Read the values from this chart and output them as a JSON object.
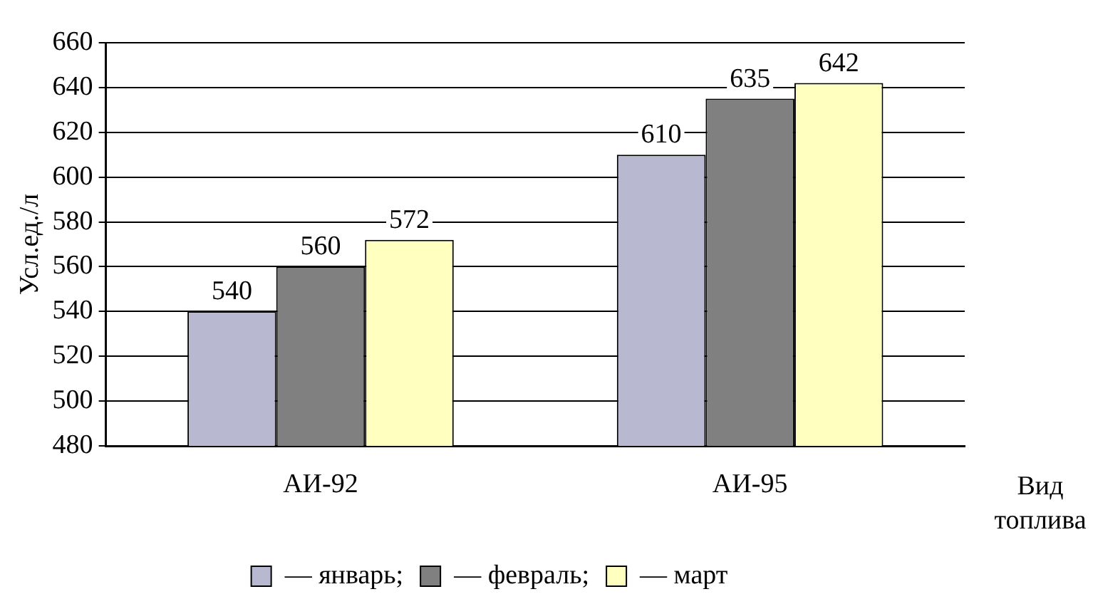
{
  "chart_data": {
    "type": "bar",
    "ylabel": "Усл.ед./л",
    "xlabel": "Вид топлива",
    "categories": [
      "АИ-92",
      "АИ-95"
    ],
    "series": [
      {
        "name": "— январь;",
        "color": "#b8b8d0",
        "values": [
          540,
          610
        ]
      },
      {
        "name": "— февраль;",
        "color": "#808080",
        "values": [
          560,
          635
        ]
      },
      {
        "name": "— март",
        "color": "#ffffc0",
        "values": [
          572,
          642
        ]
      }
    ],
    "ylim": [
      480,
      660
    ],
    "yticks": [
      480,
      500,
      520,
      540,
      560,
      580,
      600,
      620,
      640,
      660
    ],
    "grid": "y",
    "legend": "bottom",
    "data_labels": true
  }
}
